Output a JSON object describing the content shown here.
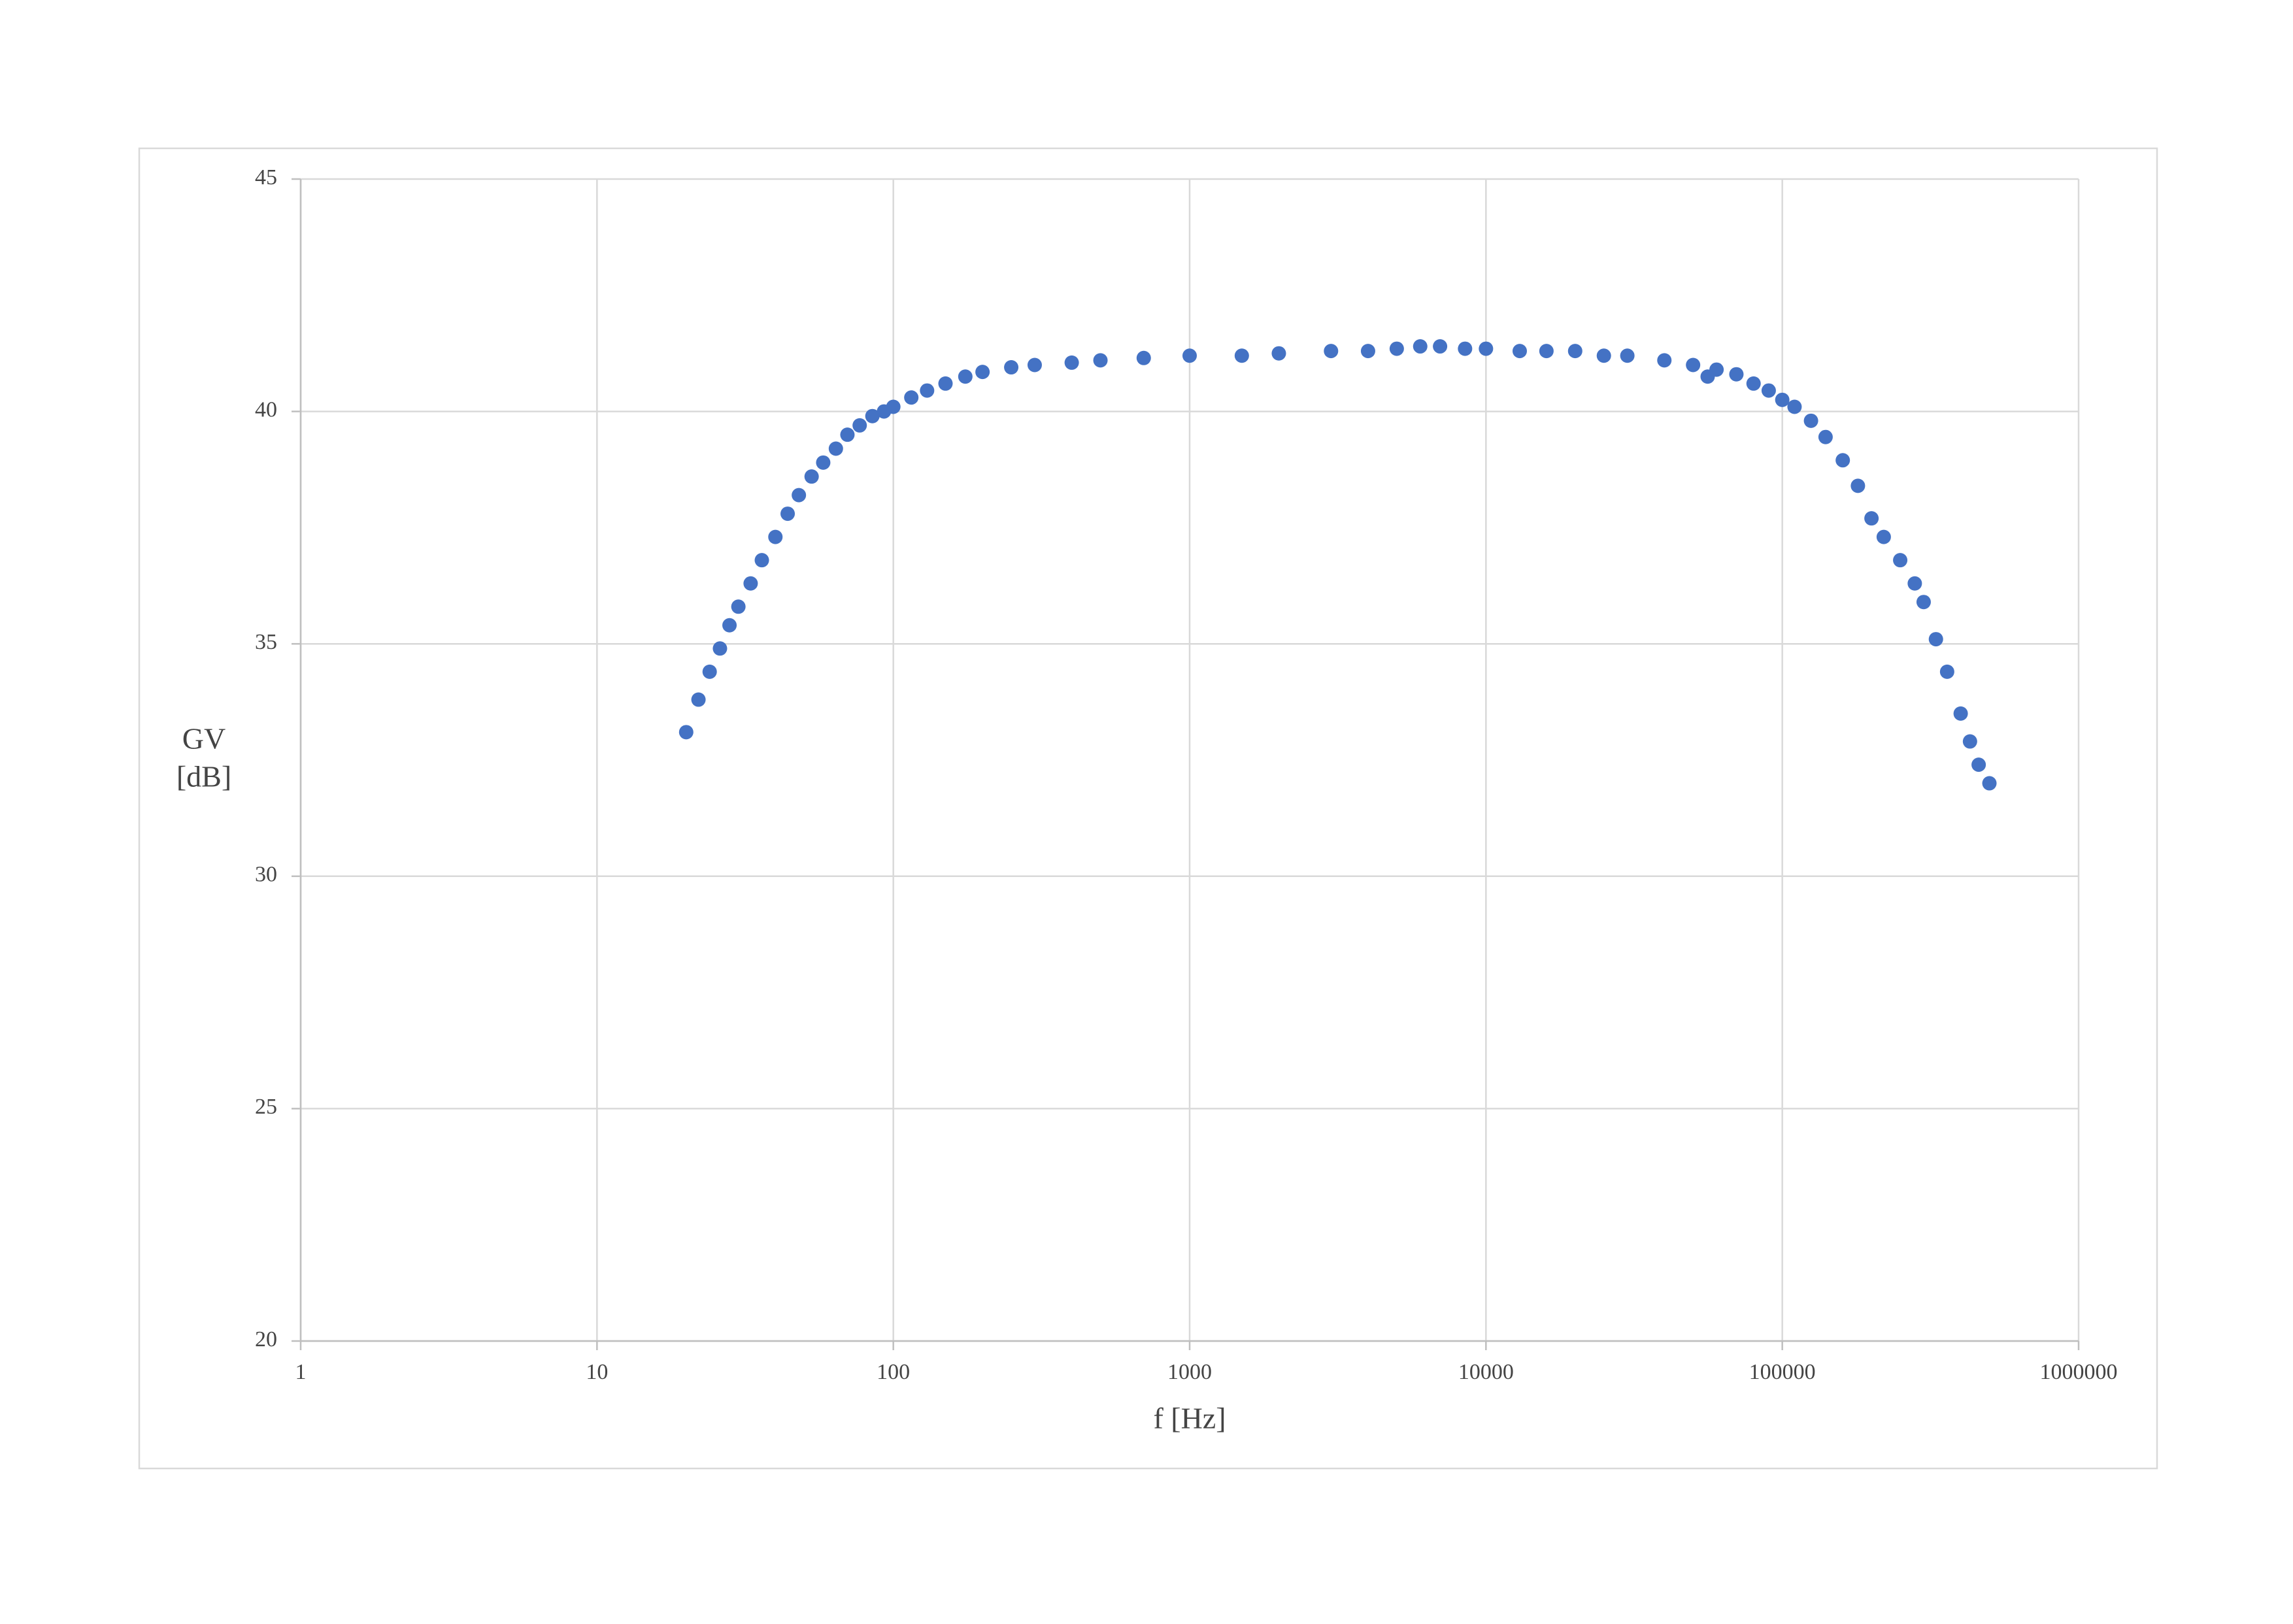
{
  "chart_data": {
    "type": "scatter",
    "xlabel": "f [Hz]",
    "ylabel": [
      "GV",
      "[dB]"
    ],
    "xscale": "log",
    "grid": true,
    "color": "#4472c4",
    "xlim": [
      1,
      1000000
    ],
    "ylim": [
      20,
      45
    ],
    "xticks": [
      1,
      10,
      100,
      1000,
      10000,
      100000,
      1000000
    ],
    "yticks": [
      20,
      25,
      30,
      35,
      40,
      45
    ],
    "x": [
      20,
      22,
      24,
      26,
      28,
      30,
      33,
      36,
      40,
      44,
      48,
      53,
      58,
      64,
      70,
      77,
      85,
      93,
      100,
      115,
      130,
      150,
      175,
      200,
      250,
      300,
      400,
      500,
      700,
      1000,
      1500,
      2000,
      3000,
      4000,
      5000,
      6000,
      7000,
      8500,
      10000,
      13000,
      16000,
      20000,
      25000,
      30000,
      40000,
      50000,
      56000,
      60000,
      70000,
      80000,
      90000,
      100000,
      110000,
      125000,
      140000,
      160000,
      180000,
      200000,
      220000,
      250000,
      280000,
      300000,
      330000,
      360000,
      400000,
      430000,
      460000,
      500000
    ],
    "values": [
      33.1,
      33.8,
      34.4,
      34.9,
      35.4,
      35.8,
      36.3,
      36.8,
      37.3,
      37.8,
      38.2,
      38.6,
      38.9,
      39.2,
      39.5,
      39.7,
      39.9,
      40.0,
      40.1,
      40.3,
      40.45,
      40.6,
      40.75,
      40.85,
      40.95,
      41.0,
      41.05,
      41.1,
      41.15,
      41.2,
      41.2,
      41.25,
      41.3,
      41.3,
      41.35,
      41.4,
      41.4,
      41.35,
      41.35,
      41.3,
      41.3,
      41.3,
      41.2,
      41.2,
      41.1,
      41.0,
      40.75,
      40.9,
      40.8,
      40.6,
      40.45,
      40.25,
      40.1,
      39.8,
      39.45,
      38.95,
      38.4,
      37.7,
      37.3,
      36.8,
      36.3,
      35.9,
      35.1,
      34.4,
      33.5,
      32.9,
      32.4,
      32.0
    ]
  }
}
